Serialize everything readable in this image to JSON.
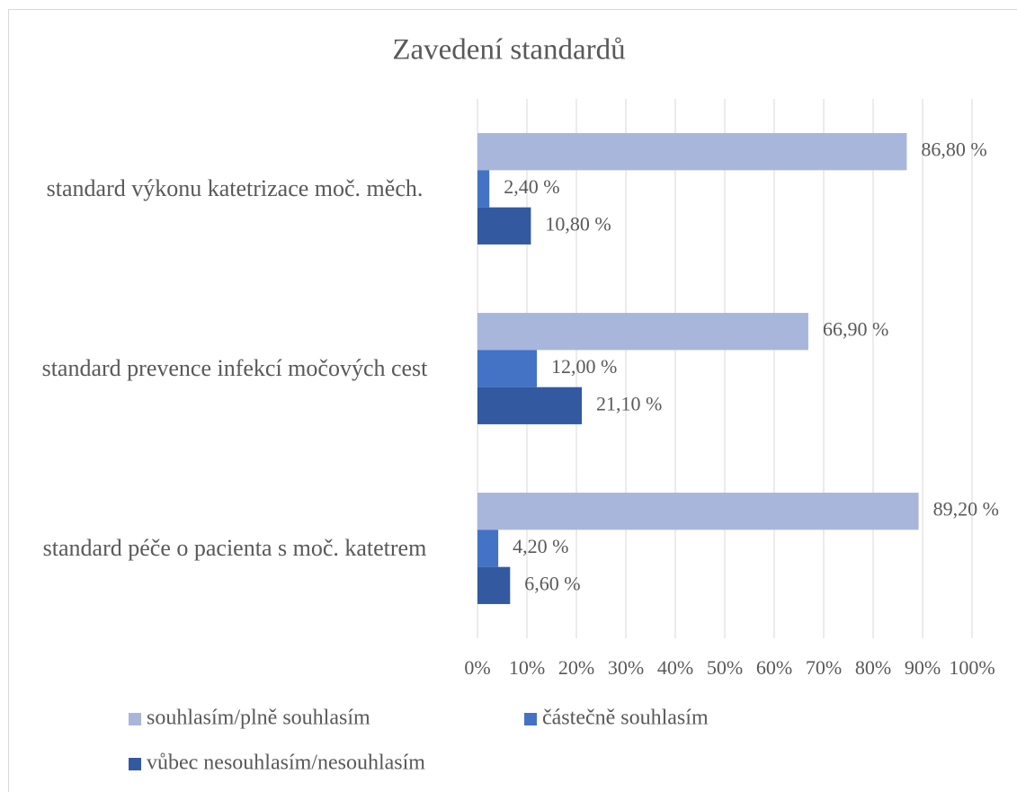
{
  "chart_data": {
    "type": "bar",
    "orientation": "horizontal",
    "title": "Zavedení standardů",
    "categories": [
      "standard výkonu katetrizace moč. měch.",
      "standard prevence infekcí močových cest",
      "standard péče o pacienta s moč. katetrem"
    ],
    "series": [
      {
        "name": "souhlasím/plně souhlasím",
        "color": "#a9b6dc",
        "values": [
          86.8,
          66.9,
          89.2
        ],
        "value_labels": [
          "86,80 %",
          "66,90 %",
          "89,20 %"
        ]
      },
      {
        "name": "částečně souhlasím",
        "color": "#4472c4",
        "values": [
          2.4,
          12.0,
          4.2
        ],
        "value_labels": [
          "2,40 %",
          "12,00 %",
          "4,20 %"
        ]
      },
      {
        "name": "vůbec nesouhlasím/nesouhlasím",
        "color": "#335aa1",
        "values": [
          10.8,
          21.1,
          6.6
        ],
        "value_labels": [
          "10,80 %",
          "21,10 %",
          "6,60 %"
        ]
      }
    ],
    "xlim": [
      0,
      100
    ],
    "xticks": [
      {
        "value": 0,
        "label": "0%"
      },
      {
        "value": 10,
        "label": "10%"
      },
      {
        "value": 20,
        "label": "20%"
      },
      {
        "value": 30,
        "label": "30%"
      },
      {
        "value": 40,
        "label": "40%"
      },
      {
        "value": 50,
        "label": "50%"
      },
      {
        "value": 60,
        "label": "60%"
      },
      {
        "value": 70,
        "label": "70%"
      },
      {
        "value": 80,
        "label": "80%"
      },
      {
        "value": 90,
        "label": "90%"
      },
      {
        "value": 100,
        "label": "100%"
      }
    ],
    "grid": true,
    "legend": "bottom"
  }
}
